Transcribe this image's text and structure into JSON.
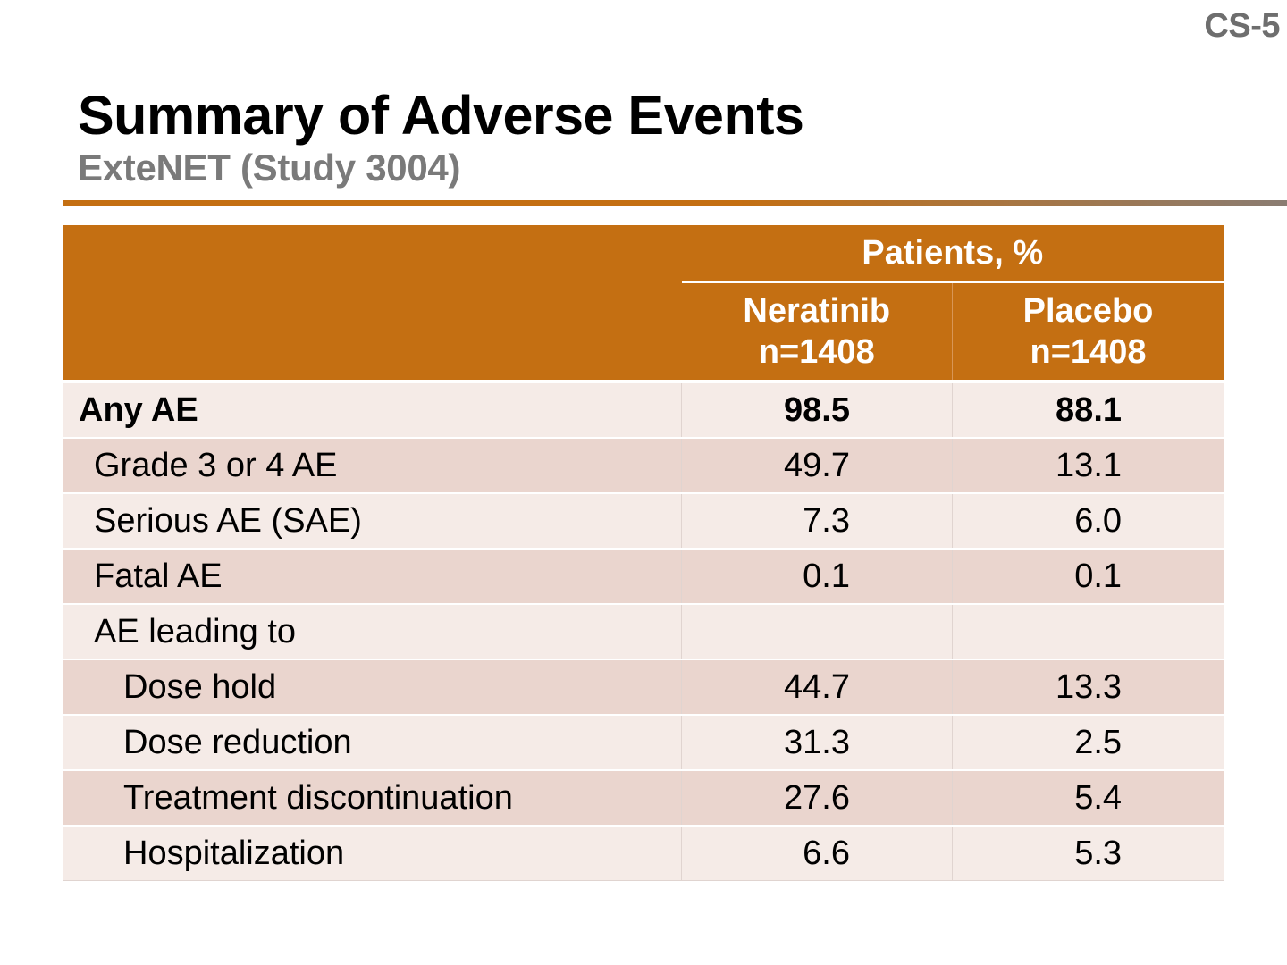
{
  "slide_number": "CS-5",
  "title": "Summary of Adverse Events",
  "subtitle": "ExteNET (Study 3004)",
  "colors": {
    "header_bg": "#c46f12",
    "row_light": "#f5ebe7",
    "row_dark": "#ead5ce",
    "subtitle": "#7a7a7a"
  },
  "table": {
    "group_header": "Patients, %",
    "columns": [
      {
        "name": "Neratinib",
        "n": "n=1408"
      },
      {
        "name": "Placebo",
        "n": "n=1408"
      }
    ],
    "rows": [
      {
        "label": "Any AE",
        "neratinib": "98.5",
        "placebo": "88.1"
      },
      {
        "label": "Grade 3 or 4 AE",
        "neratinib": "49.7",
        "placebo": "13.1"
      },
      {
        "label": "Serious AE (SAE)",
        "neratinib": "7.3",
        "placebo": "6.0"
      },
      {
        "label": "Fatal AE",
        "neratinib": "0.1",
        "placebo": "0.1"
      },
      {
        "label": "AE leading to",
        "neratinib": "",
        "placebo": ""
      },
      {
        "label": "Dose hold",
        "neratinib": "44.7",
        "placebo": "13.3"
      },
      {
        "label": "Dose reduction",
        "neratinib": "31.3",
        "placebo": "2.5"
      },
      {
        "label": "Treatment discontinuation",
        "neratinib": "27.6",
        "placebo": "5.4"
      },
      {
        "label": "Hospitalization",
        "neratinib": "6.6",
        "placebo": "5.3"
      }
    ]
  }
}
